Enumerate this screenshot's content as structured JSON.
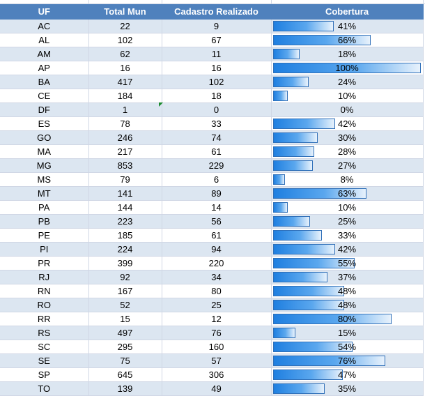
{
  "headers": [
    "UF",
    "Total Mun",
    "Cadastro Realizado",
    "Cobertura"
  ],
  "colors": {
    "header_bg": "#4f81bd",
    "alt_row": "#dce6f1",
    "bar_start": "#1f7fe0",
    "bar_end": "#e8f2fc",
    "bar_border": "#2f6fb8"
  },
  "rows": [
    {
      "uf": "AC",
      "total": "22",
      "cadastro": "9",
      "cobertura": "41%",
      "pct": 41
    },
    {
      "uf": "AL",
      "total": "102",
      "cadastro": "67",
      "cobertura": "66%",
      "pct": 66
    },
    {
      "uf": "AM",
      "total": "62",
      "cadastro": "11",
      "cobertura": "18%",
      "pct": 18
    },
    {
      "uf": "AP",
      "total": "16",
      "cadastro": "16",
      "cobertura": "100%",
      "pct": 100
    },
    {
      "uf": "BA",
      "total": "417",
      "cadastro": "102",
      "cobertura": "24%",
      "pct": 24
    },
    {
      "uf": "CE",
      "total": "184",
      "cadastro": "18",
      "cobertura": "10%",
      "pct": 10
    },
    {
      "uf": "DF",
      "total": "1",
      "cadastro": "0",
      "cobertura": "0%",
      "pct": 0
    },
    {
      "uf": "ES",
      "total": "78",
      "cadastro": "33",
      "cobertura": "42%",
      "pct": 42
    },
    {
      "uf": "GO",
      "total": "246",
      "cadastro": "74",
      "cobertura": "30%",
      "pct": 30
    },
    {
      "uf": "MA",
      "total": "217",
      "cadastro": "61",
      "cobertura": "28%",
      "pct": 28
    },
    {
      "uf": "MG",
      "total": "853",
      "cadastro": "229",
      "cobertura": "27%",
      "pct": 27
    },
    {
      "uf": "MS",
      "total": "79",
      "cadastro": "6",
      "cobertura": "8%",
      "pct": 8
    },
    {
      "uf": "MT",
      "total": "141",
      "cadastro": "89",
      "cobertura": "63%",
      "pct": 63
    },
    {
      "uf": "PA",
      "total": "144",
      "cadastro": "14",
      "cobertura": "10%",
      "pct": 10
    },
    {
      "uf": "PB",
      "total": "223",
      "cadastro": "56",
      "cobertura": "25%",
      "pct": 25
    },
    {
      "uf": "PE",
      "total": "185",
      "cadastro": "61",
      "cobertura": "33%",
      "pct": 33
    },
    {
      "uf": "PI",
      "total": "224",
      "cadastro": "94",
      "cobertura": "42%",
      "pct": 42
    },
    {
      "uf": "PR",
      "total": "399",
      "cadastro": "220",
      "cobertura": "55%",
      "pct": 55
    },
    {
      "uf": "RJ",
      "total": "92",
      "cadastro": "34",
      "cobertura": "37%",
      "pct": 37
    },
    {
      "uf": "RN",
      "total": "167",
      "cadastro": "80",
      "cobertura": "48%",
      "pct": 48
    },
    {
      "uf": "RO",
      "total": "52",
      "cadastro": "25",
      "cobertura": "48%",
      "pct": 48
    },
    {
      "uf": "RR",
      "total": "15",
      "cadastro": "12",
      "cobertura": "80%",
      "pct": 80
    },
    {
      "uf": "RS",
      "total": "497",
      "cadastro": "76",
      "cobertura": "15%",
      "pct": 15
    },
    {
      "uf": "SC",
      "total": "295",
      "cadastro": "160",
      "cobertura": "54%",
      "pct": 54
    },
    {
      "uf": "SE",
      "total": "75",
      "cadastro": "57",
      "cobertura": "76%",
      "pct": 76
    },
    {
      "uf": "SP",
      "total": "645",
      "cadastro": "306",
      "cobertura": "47%",
      "pct": 47
    },
    {
      "uf": "TO",
      "total": "139",
      "cadastro": "49",
      "cobertura": "35%",
      "pct": 35
    }
  ]
}
